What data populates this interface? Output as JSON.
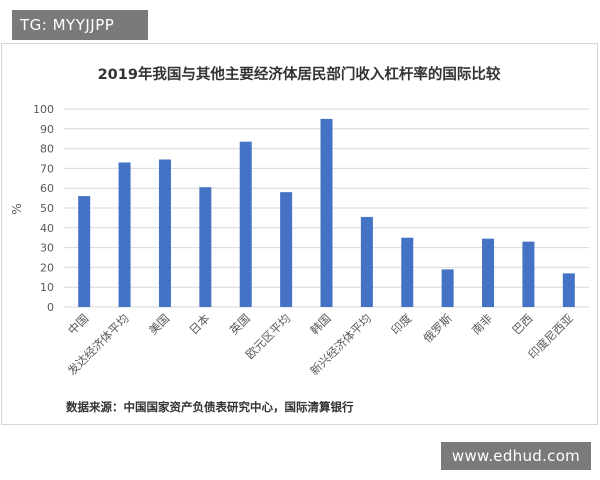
{
  "overlay": {
    "tag_text": "TG: MYYJJPP",
    "watermark_text": "www.edhud.com"
  },
  "colors": {
    "bar": "#4472c4",
    "grid": "#d9d9d9",
    "axis_text": "#595959",
    "title": "#333333"
  },
  "chart_data": {
    "type": "bar",
    "title": "2019年我国与其他主要经济体居民部门收入杠杆率的国际比较",
    "xlabel": "",
    "ylabel": "%",
    "ylim": [
      0,
      100
    ],
    "yticks": [
      0,
      10,
      20,
      30,
      40,
      50,
      60,
      70,
      80,
      90,
      100
    ],
    "grid": true,
    "legend": "none",
    "categories": [
      "中国",
      "发达经济体平均",
      "美国",
      "日本",
      "英国",
      "欧元区平均",
      "韩国",
      "新兴经济体平均",
      "印度",
      "俄罗斯",
      "南非",
      "巴西",
      "印度尼西亚"
    ],
    "values": [
      56,
      73,
      74.5,
      60.5,
      83.5,
      58,
      95,
      45.5,
      35,
      19,
      34.5,
      33,
      17
    ],
    "source": "数据来源：中国国家资产负债表研究中心，国际清算银行"
  }
}
